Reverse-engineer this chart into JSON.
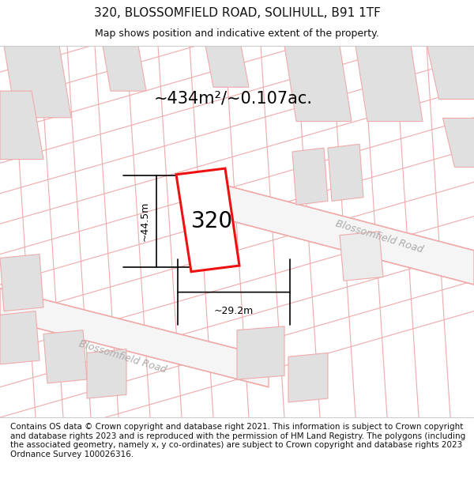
{
  "title": "320, BLOSSOMFIELD ROAD, SOLIHULL, B91 1TF",
  "subtitle": "Map shows position and indicative extent of the property.",
  "area_label": "~434m²/~0.107ac.",
  "property_label": "320",
  "dim_width": "~29.2m",
  "dim_height": "~44.5m",
  "road_label_ur": "Blossomfield Road",
  "road_label_ll": "Blossomfield Road",
  "footer": "Contains OS data © Crown copyright and database right 2021. This information is subject to Crown copyright and database rights 2023 and is reproduced with the permission of HM Land Registry. The polygons (including the associated geometry, namely x, y co-ordinates) are subject to Crown copyright and database rights 2023 Ordnance Survey 100026316.",
  "red_color": "#ee1111",
  "pink_color": "#f0aaaa",
  "gray_fill": "#e0e0e0",
  "light_gray": "#ebebeb",
  "road_bg": "#f0f0f0",
  "white": "#ffffff",
  "title_fontsize": 11,
  "subtitle_fontsize": 9,
  "area_fontsize": 15,
  "prop_label_fontsize": 20,
  "dim_fontsize": 9,
  "road_fontsize": 9,
  "footer_fontsize": 7.5
}
